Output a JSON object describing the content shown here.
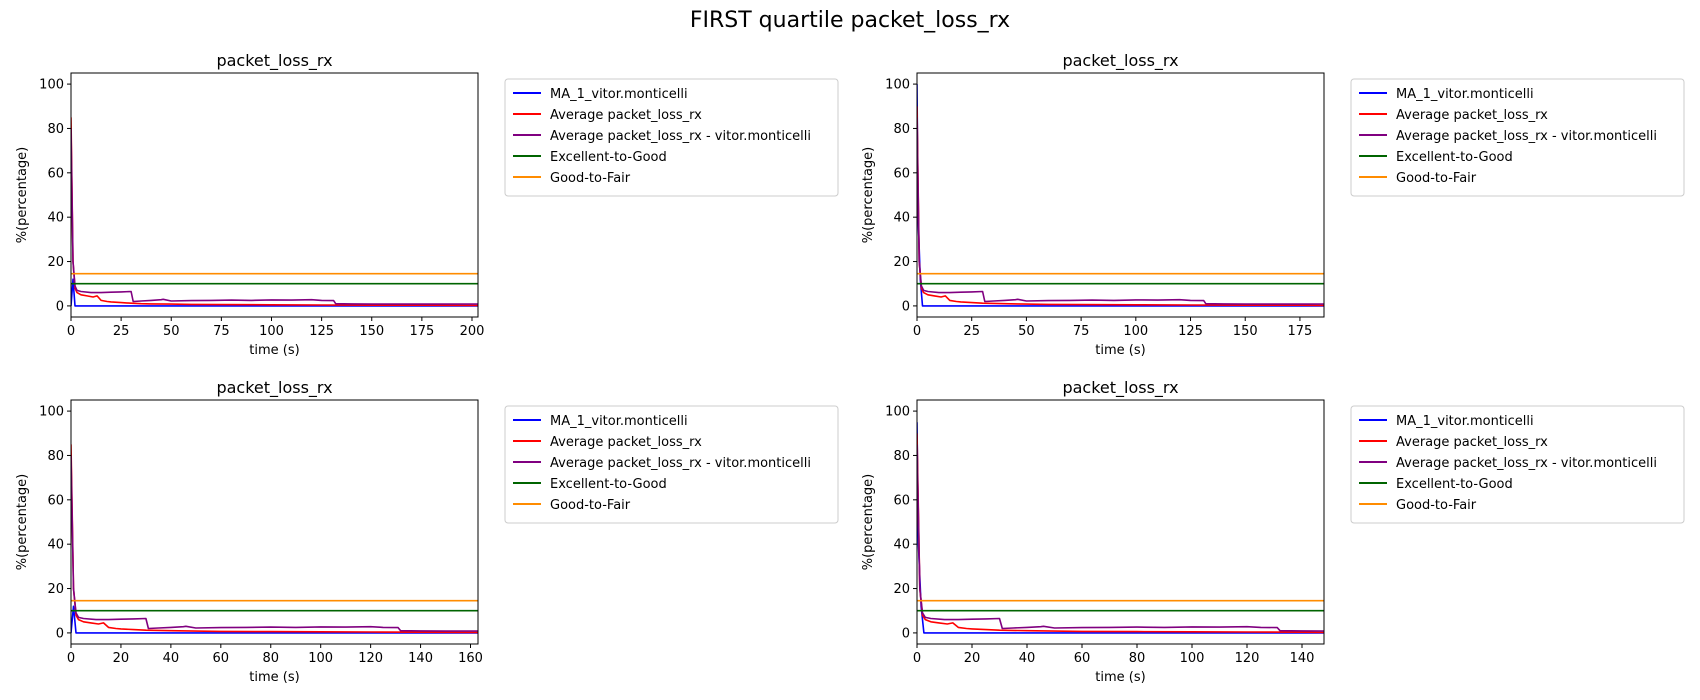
{
  "figure": {
    "title": "FIRST quartile packet_loss_rx"
  },
  "colors": {
    "ma": "#0000ff",
    "avg": "#ff0000",
    "avg_user": "#800080",
    "excellent_good": "#006400",
    "good_fair": "#ff8c00"
  },
  "chart_data": [
    {
      "type": "line",
      "title": "packet_loss_rx",
      "xlabel": "time (s)",
      "ylabel": "%(percentage)",
      "xlim": [
        0,
        203
      ],
      "ylim": [
        -5,
        105
      ],
      "xticks": [
        0,
        25,
        50,
        75,
        100,
        125,
        150,
        175,
        200
      ],
      "yticks": [
        0,
        20,
        40,
        60,
        80,
        100
      ],
      "grid": false,
      "legend_position": "outside-right",
      "series": [
        {
          "name": "MA_1_vitor.monticelli",
          "color_key": "ma",
          "x": [
            0,
            1,
            2,
            203
          ],
          "y": [
            0,
            12,
            0,
            0
          ]
        },
        {
          "name": "Average packet_loss_rx",
          "color_key": "avg",
          "x": [
            0,
            1,
            2,
            3,
            5,
            8,
            11,
            13,
            15,
            18,
            20,
            25,
            30,
            35,
            40,
            50,
            60,
            75,
            100,
            125,
            150,
            175,
            203
          ],
          "y": [
            85,
            20,
            8,
            6,
            5,
            4.5,
            4,
            4.5,
            2.5,
            2,
            1.8,
            1.5,
            1.2,
            1,
            0.9,
            0.8,
            0.7,
            0.6,
            0.5,
            0.4,
            0.3,
            0.3,
            0.2
          ]
        },
        {
          "name": "Average packet_loss_rx - vitor.monticelli",
          "color_key": "avg_user",
          "x": [
            0,
            1,
            2,
            3,
            5,
            10,
            15,
            20,
            25,
            30,
            31,
            35,
            40,
            45,
            46,
            50,
            60,
            70,
            80,
            90,
            100,
            110,
            120,
            125,
            131,
            132,
            140,
            150,
            175,
            203
          ],
          "y": [
            80,
            20,
            9,
            7,
            6.5,
            6,
            6,
            6.2,
            6.3,
            6.5,
            2,
            2.2,
            2.5,
            2.8,
            3,
            2.2,
            2.4,
            2.5,
            2.6,
            2.5,
            2.7,
            2.6,
            2.8,
            2.5,
            2.4,
            1,
            0.9,
            0.8,
            0.8,
            0.8
          ]
        },
        {
          "name": "Excellent-to-Good",
          "color_key": "excellent_good",
          "x": [
            0,
            203
          ],
          "y": [
            10,
            10
          ]
        },
        {
          "name": "Good-to-Fair",
          "color_key": "good_fair",
          "x": [
            0,
            203
          ],
          "y": [
            14.5,
            14.5
          ]
        }
      ]
    },
    {
      "type": "line",
      "title": "packet_loss_rx",
      "xlabel": "time (s)",
      "ylabel": "%(percentage)",
      "xlim": [
        0,
        186
      ],
      "ylim": [
        -5,
        105
      ],
      "xticks": [
        0,
        25,
        50,
        75,
        100,
        125,
        150,
        175
      ],
      "yticks": [
        0,
        20,
        40,
        60,
        80,
        100
      ],
      "grid": false,
      "legend_position": "outside-right",
      "series": [
        {
          "name": "MA_1_vitor.monticelli",
          "color_key": "ma",
          "x": [
            0,
            0.5,
            1.5,
            2.5,
            186
          ],
          "y": [
            100,
            40,
            12,
            0,
            0
          ]
        },
        {
          "name": "Average packet_loss_rx",
          "color_key": "avg",
          "x": [
            0,
            1,
            2,
            3,
            5,
            8,
            11,
            13,
            15,
            18,
            20,
            25,
            30,
            40,
            50,
            60,
            75,
            100,
            125,
            150,
            175,
            186
          ],
          "y": [
            90,
            20,
            8,
            6,
            5,
            4.5,
            4,
            4.5,
            2.5,
            2,
            1.8,
            1.5,
            1.2,
            1,
            0.8,
            0.7,
            0.6,
            0.5,
            0.4,
            0.3,
            0.3,
            0.2
          ]
        },
        {
          "name": "Average packet_loss_rx - vitor.monticelli",
          "color_key": "avg_user",
          "x": [
            0,
            1,
            2,
            3,
            5,
            10,
            15,
            20,
            25,
            30,
            31,
            35,
            40,
            45,
            46,
            50,
            60,
            70,
            80,
            90,
            100,
            110,
            120,
            125,
            131,
            132,
            140,
            150,
            175,
            186
          ],
          "y": [
            85,
            20,
            9,
            7,
            6.5,
            6,
            6,
            6.2,
            6.3,
            6.5,
            2,
            2.2,
            2.5,
            2.8,
            3,
            2.2,
            2.4,
            2.5,
            2.6,
            2.5,
            2.7,
            2.6,
            2.8,
            2.5,
            2.4,
            1,
            0.9,
            0.8,
            0.8,
            0.8
          ]
        },
        {
          "name": "Excellent-to-Good",
          "color_key": "excellent_good",
          "x": [
            0,
            186
          ],
          "y": [
            10,
            10
          ]
        },
        {
          "name": "Good-to-Fair",
          "color_key": "good_fair",
          "x": [
            0,
            186
          ],
          "y": [
            14.5,
            14.5
          ]
        }
      ]
    },
    {
      "type": "line",
      "title": "packet_loss_rx",
      "xlabel": "time (s)",
      "ylabel": "%(percentage)",
      "xlim": [
        0,
        163
      ],
      "ylim": [
        -5,
        105
      ],
      "xticks": [
        0,
        20,
        40,
        60,
        80,
        100,
        120,
        140,
        160
      ],
      "yticks": [
        0,
        20,
        40,
        60,
        80,
        100
      ],
      "grid": false,
      "legend_position": "outside-right",
      "series": [
        {
          "name": "MA_1_vitor.monticelli",
          "color_key": "ma",
          "x": [
            0,
            1,
            2,
            163
          ],
          "y": [
            0,
            12,
            0,
            0
          ]
        },
        {
          "name": "Average packet_loss_rx",
          "color_key": "avg",
          "x": [
            0,
            1,
            2,
            3,
            5,
            8,
            11,
            13,
            15,
            18,
            20,
            25,
            30,
            40,
            50,
            60,
            80,
            100,
            120,
            140,
            163
          ],
          "y": [
            85,
            20,
            8,
            6,
            5,
            4.5,
            4,
            4.5,
            2.5,
            2,
            1.8,
            1.5,
            1.2,
            1,
            0.8,
            0.7,
            0.6,
            0.5,
            0.4,
            0.3,
            0.2
          ]
        },
        {
          "name": "Average packet_loss_rx - vitor.monticelli",
          "color_key": "avg_user",
          "x": [
            0,
            1,
            2,
            3,
            5,
            10,
            15,
            20,
            25,
            30,
            31,
            35,
            40,
            45,
            46,
            50,
            60,
            70,
            80,
            90,
            100,
            110,
            120,
            125,
            131,
            132,
            140,
            150,
            163
          ],
          "y": [
            80,
            20,
            9,
            7,
            6.5,
            6,
            6,
            6.2,
            6.3,
            6.5,
            2,
            2.2,
            2.5,
            2.8,
            3,
            2.2,
            2.4,
            2.5,
            2.6,
            2.5,
            2.7,
            2.6,
            2.8,
            2.5,
            2.4,
            1,
            0.9,
            0.8,
            0.8
          ]
        },
        {
          "name": "Excellent-to-Good",
          "color_key": "excellent_good",
          "x": [
            0,
            163
          ],
          "y": [
            10,
            10
          ]
        },
        {
          "name": "Good-to-Fair",
          "color_key": "good_fair",
          "x": [
            0,
            163
          ],
          "y": [
            14.5,
            14.5
          ]
        }
      ]
    },
    {
      "type": "line",
      "title": "packet_loss_rx",
      "xlabel": "time (s)",
      "ylabel": "%(percentage)",
      "xlim": [
        0,
        148
      ],
      "ylim": [
        -5,
        105
      ],
      "xticks": [
        0,
        20,
        40,
        60,
        80,
        100,
        120,
        140
      ],
      "yticks": [
        0,
        20,
        40,
        60,
        80,
        100
      ],
      "grid": false,
      "legend_position": "outside-right",
      "series": [
        {
          "name": "MA_1_vitor.monticelli",
          "color_key": "ma",
          "x": [
            0,
            0.5,
            1.5,
            2.5,
            148
          ],
          "y": [
            95,
            40,
            12,
            0,
            0
          ]
        },
        {
          "name": "Average packet_loss_rx",
          "color_key": "avg",
          "x": [
            0,
            1,
            2,
            3,
            5,
            8,
            11,
            13,
            15,
            18,
            20,
            25,
            30,
            40,
            50,
            60,
            80,
            100,
            120,
            140,
            148
          ],
          "y": [
            90,
            20,
            8,
            6,
            5,
            4.5,
            4,
            4.5,
            2.5,
            2,
            1.8,
            1.5,
            1.2,
            1,
            0.8,
            0.7,
            0.6,
            0.5,
            0.4,
            0.3,
            0.2
          ]
        },
        {
          "name": "Average packet_loss_rx - vitor.monticelli",
          "color_key": "avg_user",
          "x": [
            0,
            1,
            2,
            3,
            5,
            10,
            15,
            20,
            25,
            30,
            31,
            35,
            40,
            45,
            46,
            50,
            60,
            70,
            80,
            90,
            100,
            110,
            120,
            125,
            131,
            132,
            140,
            148
          ],
          "y": [
            85,
            20,
            9,
            7,
            6.5,
            6,
            6,
            6.2,
            6.3,
            6.5,
            2,
            2.2,
            2.5,
            2.8,
            3,
            2.2,
            2.4,
            2.5,
            2.6,
            2.5,
            2.7,
            2.6,
            2.8,
            2.5,
            2.4,
            1,
            0.9,
            0.8
          ]
        },
        {
          "name": "Excellent-to-Good",
          "color_key": "excellent_good",
          "x": [
            0,
            148
          ],
          "y": [
            10,
            10
          ]
        },
        {
          "name": "Good-to-Fair",
          "color_key": "good_fair",
          "x": [
            0,
            148
          ],
          "y": [
            14.5,
            14.5
          ]
        }
      ]
    }
  ]
}
